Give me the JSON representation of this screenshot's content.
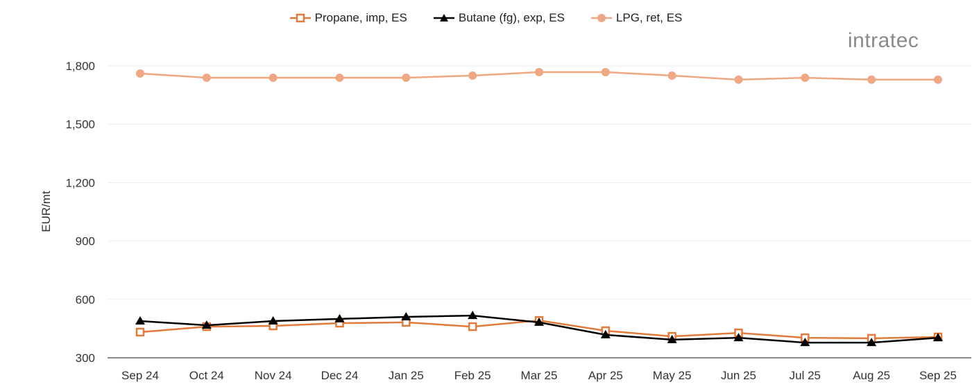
{
  "chart_data": {
    "type": "line",
    "ylabel": "EUR/mt",
    "ylim": [
      300,
      1900
    ],
    "yticks": [
      300,
      600,
      900,
      1200,
      1500,
      1800
    ],
    "ytick_labels": [
      "300",
      "600",
      "900",
      "1,200",
      "1,500",
      "1,800"
    ],
    "grid": true,
    "legend_position": "top",
    "categories": [
      "Sep 24",
      "Oct 24",
      "Nov 24",
      "Dec 24",
      "Jan 25",
      "Feb 25",
      "Mar 25",
      "Apr 25",
      "May 25",
      "Jun 25",
      "Jul 25",
      "Aug 25",
      "Sep 25"
    ],
    "series": [
      {
        "name": "Propane, imp, ES",
        "color": "#e07b3c",
        "marker": "open-square",
        "values": [
          432,
          460,
          464,
          478,
          482,
          460,
          492,
          439,
          410,
          428,
          403,
          400,
          407
        ]
      },
      {
        "name": "Butane (fg), exp, ES",
        "color": "#000000",
        "marker": "triangle",
        "values": [
          489,
          467,
          489,
          500,
          510,
          517,
          482,
          418,
          393,
          403,
          378,
          378,
          403
        ]
      },
      {
        "name": "LPG, ret, ES",
        "color": "#f0a784",
        "marker": "circle",
        "values": [
          1761,
          1739,
          1739,
          1739,
          1739,
          1750,
          1768,
          1768,
          1750,
          1729,
          1739,
          1729,
          1729
        ]
      }
    ]
  },
  "logo": {
    "text": "intratec"
  }
}
